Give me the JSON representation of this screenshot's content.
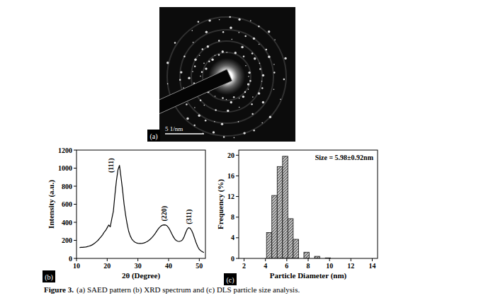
{
  "saed": {
    "panel_label": "(a)",
    "scale_bar": "5 1/nm"
  },
  "chart_data": [
    {
      "type": "line",
      "panel_label": "(b)",
      "x_label": "2θ (Degree)",
      "y_label": "Intensity (a.u.)",
      "color": "#000000",
      "grid": false,
      "x": [
        11,
        11.5,
        12,
        12.5,
        13,
        13.5,
        14,
        14.5,
        15,
        15.5,
        16,
        16.5,
        17,
        17.5,
        18,
        18.5,
        19,
        19.5,
        20,
        20.5,
        21,
        21.5,
        22,
        22.5,
        23,
        23.5,
        24,
        24.5,
        25,
        25.5,
        26,
        26.5,
        27,
        27.5,
        28,
        28.5,
        29,
        29.5,
        30,
        30.5,
        31,
        31.5,
        32,
        32.5,
        33,
        33.5,
        34,
        34.5,
        35,
        35.5,
        36,
        36.5,
        37,
        37.5,
        38,
        38.5,
        39,
        39.5,
        40,
        40.5,
        41,
        41.5,
        42,
        42.5,
        43,
        43.5,
        44,
        44.5,
        45,
        45.5,
        46,
        46.5,
        47,
        47.5,
        48,
        48.5,
        49,
        49.5,
        50,
        50.5,
        51,
        51.5
      ],
      "values": [
        120,
        122,
        123,
        125,
        127,
        130,
        135,
        140,
        148,
        158,
        170,
        185,
        200,
        220,
        240,
        262,
        290,
        310,
        340,
        370,
        350,
        440,
        520,
        700,
        860,
        980,
        1030,
        900,
        760,
        600,
        480,
        380,
        300,
        250,
        215,
        195,
        180,
        172,
        168,
        166,
        166,
        168,
        172,
        178,
        186,
        198,
        212,
        228,
        248,
        270,
        295,
        320,
        342,
        358,
        368,
        372,
        370,
        360,
        340,
        310,
        275,
        242,
        215,
        198,
        190,
        188,
        192,
        205,
        235,
        280,
        320,
        340,
        335,
        310,
        270,
        220,
        170,
        130,
        100,
        85,
        75,
        65
      ],
      "xlim": [
        10,
        52
      ],
      "xticks": [
        10,
        20,
        30,
        40,
        50
      ],
      "ylim": [
        0,
        1200
      ],
      "yticks": [
        0,
        200,
        400,
        600,
        800,
        1000,
        1200
      ],
      "annotations": [
        {
          "text": "(111)",
          "x": 24,
          "y": 1030
        },
        {
          "text": "(220)",
          "x": 38.5,
          "y": 372
        },
        {
          "text": "(311)",
          "x": 46.5,
          "y": 340
        }
      ]
    },
    {
      "type": "histogram",
      "panel_label": "(c)",
      "x_label": "Particle Diameter (nm)",
      "y_label": "Frequency (%)",
      "color": "#bdbdbd",
      "grid": false,
      "bins": [
        4.1,
        4.6,
        5.1,
        5.6,
        6.1,
        6.6,
        7.1,
        7.6,
        8.1,
        8.6,
        9.1,
        9.6,
        10.1
      ],
      "values": [
        5,
        12.2,
        17.8,
        19.8,
        7.7,
        3.7,
        0,
        1.2,
        0,
        0.4,
        0,
        0.1
      ],
      "xlim": [
        1.5,
        14.5
      ],
      "xticks": [
        2,
        4,
        6,
        8,
        10,
        12,
        14
      ],
      "ylim": [
        0,
        21
      ],
      "yticks": [
        0,
        4,
        8,
        12,
        16,
        20
      ],
      "annotations": [
        {
          "text": "Size = 5.98±0.92nm"
        }
      ]
    }
  ],
  "caption": {
    "lead": "Figure 3.",
    "text": "(a) SAED pattern (b) XRD spectrum and (c) DLS particle size analysis."
  }
}
